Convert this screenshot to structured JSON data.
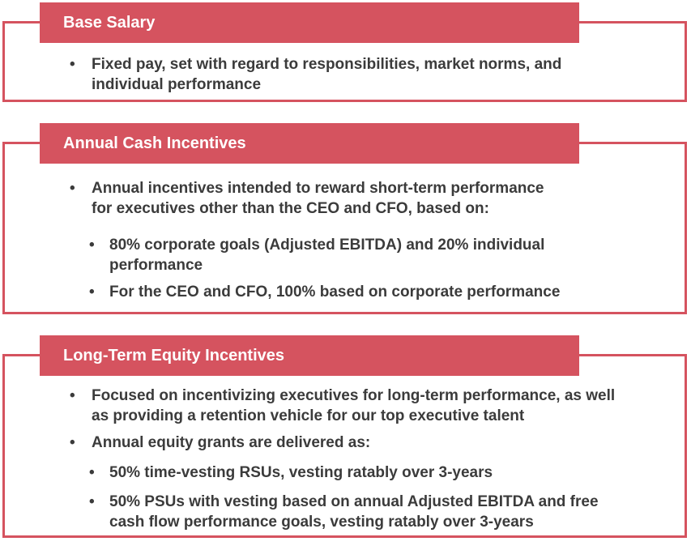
{
  "accent_color": "#d5535f",
  "text_color": "#3b3b3b",
  "header_text_color": "#ffffff",
  "icons": {
    "bullet": "•"
  },
  "sections": [
    {
      "title": "Base Salary",
      "bullets": [
        {
          "text": "Fixed pay, set with regard to responsibilities, market norms, and\nindividual performance"
        }
      ]
    },
    {
      "title": "Annual Cash Incentives",
      "bullets": [
        {
          "text": "Annual incentives intended to reward short-term performance\nfor executives other than the CEO and CFO, based on:",
          "sub": [
            "80% corporate goals (Adjusted EBITDA) and 20% individual\nperformance",
            "For the CEO and CFO, 100% based on corporate performance"
          ]
        }
      ]
    },
    {
      "title": "Long-Term Equity Incentives",
      "bullets": [
        {
          "text": "Focused on incentivizing executives for long-term performance, as well\nas providing a retention vehicle for our top executive talent"
        },
        {
          "text": "Annual equity grants are delivered as:",
          "sub": [
            "50% time-vesting RSUs, vesting ratably over 3-years",
            "50% PSUs with vesting based on annual Adjusted EBITDA and free\ncash flow performance goals, vesting ratably over 3-years"
          ]
        }
      ]
    }
  ]
}
